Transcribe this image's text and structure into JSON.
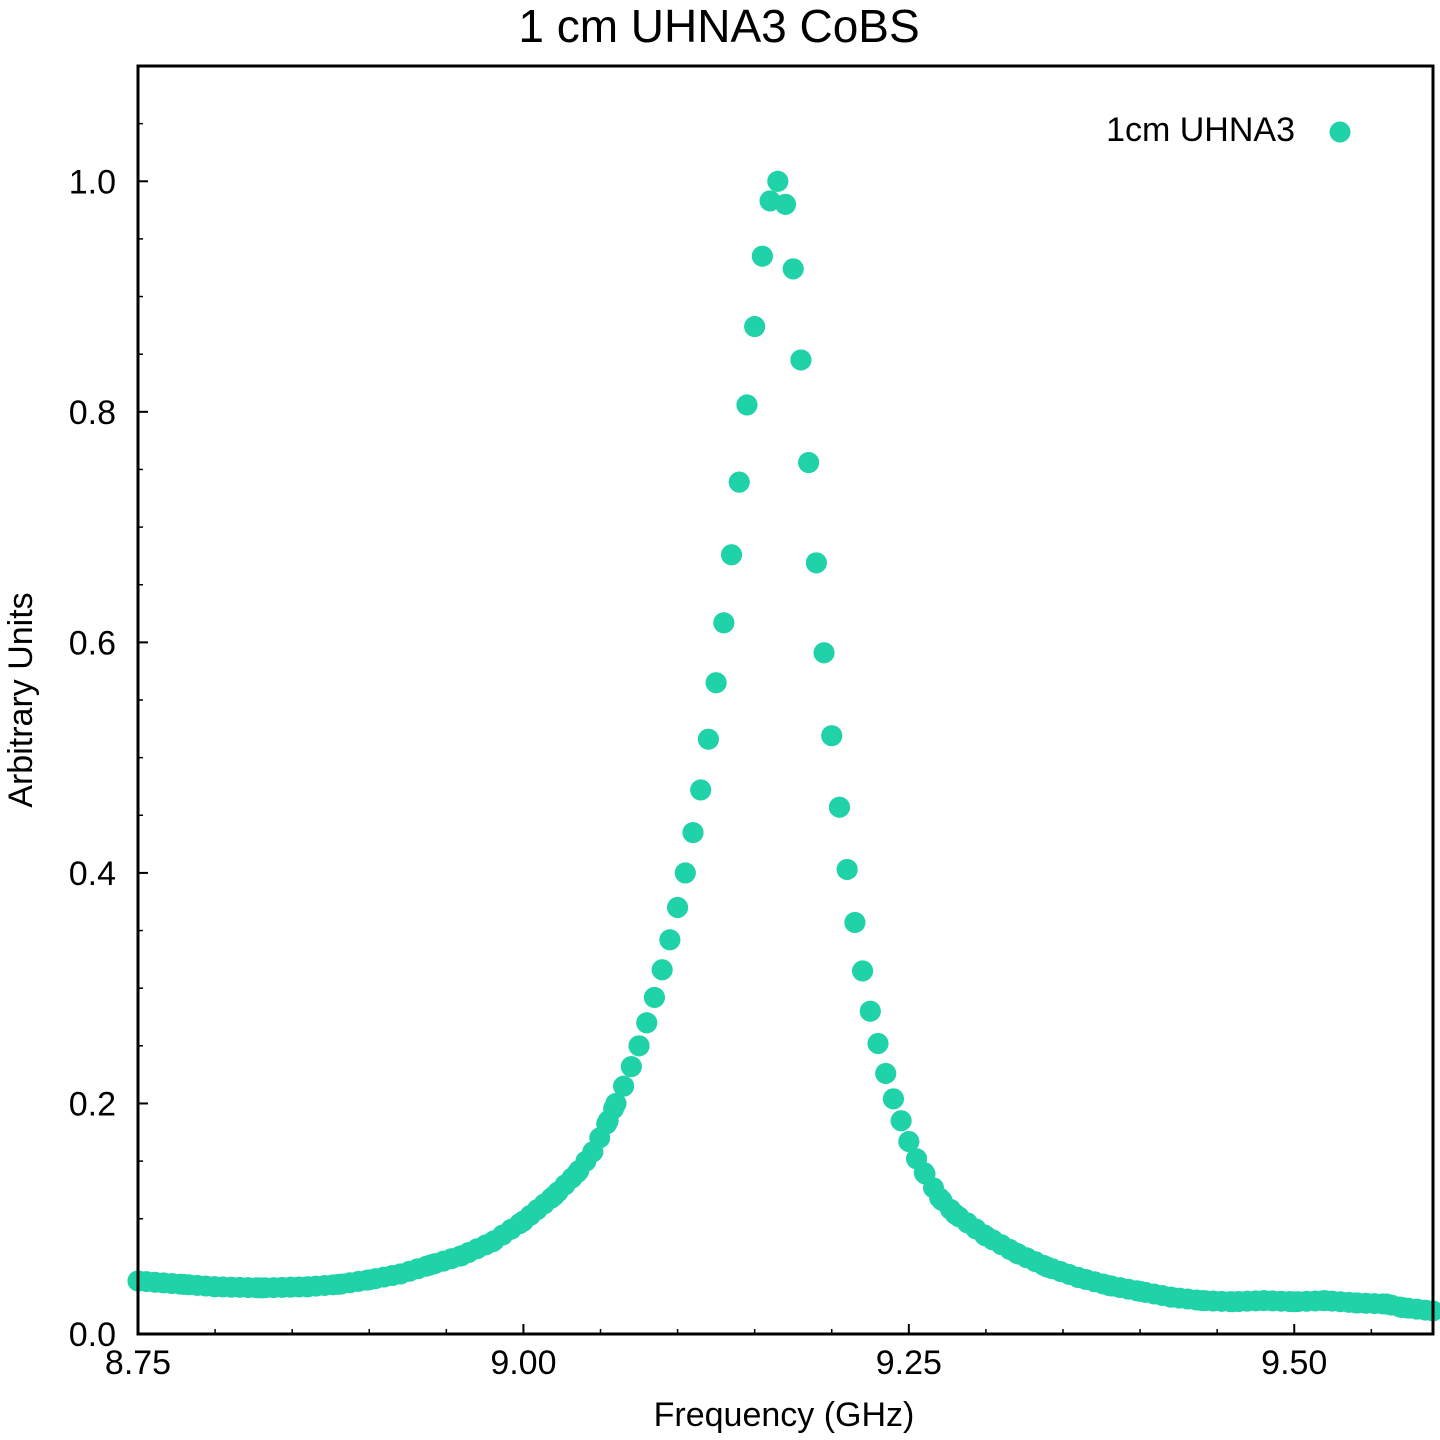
{
  "chart_data": {
    "type": "scatter",
    "title": "1 cm UHNA3 CoBS",
    "xlabel": "Frequency (GHz)",
    "ylabel": "Arbitrary Units",
    "xlim": [
      8.75,
      9.59
    ],
    "ylim": [
      0.0,
      1.1
    ],
    "xticks": [
      8.75,
      9.0,
      9.25,
      9.5
    ],
    "xtick_labels": [
      "8.75",
      "9.00",
      "9.25",
      "9.50"
    ],
    "yticks": [
      0.0,
      0.2,
      0.4,
      0.6,
      0.8,
      1.0
    ],
    "ytick_labels": [
      "0.0",
      "0.2",
      "0.4",
      "0.6",
      "0.8",
      "1.0"
    ],
    "grid": false,
    "legend_position": "top-right",
    "series": [
      {
        "name": "1cm UHNA3",
        "color": "#20d2a8",
        "anchor_points": [
          [
            8.75,
            0.046
          ],
          [
            8.78,
            0.043
          ],
          [
            8.8,
            0.041
          ],
          [
            8.83,
            0.04
          ],
          [
            8.86,
            0.041
          ],
          [
            8.88,
            0.043
          ],
          [
            8.9,
            0.047
          ],
          [
            8.92,
            0.052
          ],
          [
            8.94,
            0.06
          ],
          [
            8.96,
            0.068
          ],
          [
            8.98,
            0.08
          ],
          [
            9.0,
            0.098
          ],
          [
            9.02,
            0.12
          ],
          [
            9.035,
            0.14
          ],
          [
            9.045,
            0.158
          ],
          [
            9.055,
            0.185
          ],
          [
            9.06,
            0.2
          ],
          [
            9.065,
            0.215
          ],
          [
            9.07,
            0.232
          ],
          [
            9.075,
            0.25
          ],
          [
            9.08,
            0.27
          ],
          [
            9.085,
            0.292
          ],
          [
            9.09,
            0.316
          ],
          [
            9.095,
            0.342
          ],
          [
            9.1,
            0.37
          ],
          [
            9.105,
            0.4
          ],
          [
            9.11,
            0.435
          ],
          [
            9.115,
            0.472
          ],
          [
            9.12,
            0.516
          ],
          [
            9.125,
            0.565
          ],
          [
            9.13,
            0.617
          ],
          [
            9.135,
            0.676
          ],
          [
            9.14,
            0.739
          ],
          [
            9.145,
            0.806
          ],
          [
            9.15,
            0.874
          ],
          [
            9.155,
            0.935
          ],
          [
            9.16,
            0.983
          ],
          [
            9.165,
            1.0
          ],
          [
            9.17,
            0.98
          ],
          [
            9.175,
            0.924
          ],
          [
            9.18,
            0.845
          ],
          [
            9.185,
            0.756
          ],
          [
            9.19,
            0.669
          ],
          [
            9.195,
            0.591
          ],
          [
            9.2,
            0.519
          ],
          [
            9.205,
            0.457
          ],
          [
            9.21,
            0.403
          ],
          [
            9.215,
            0.357
          ],
          [
            9.22,
            0.315
          ],
          [
            9.225,
            0.28
          ],
          [
            9.23,
            0.252
          ],
          [
            9.235,
            0.226
          ],
          [
            9.24,
            0.204
          ],
          [
            9.245,
            0.185
          ],
          [
            9.25,
            0.167
          ],
          [
            9.255,
            0.152
          ],
          [
            9.26,
            0.14
          ],
          [
            9.27,
            0.118
          ],
          [
            9.28,
            0.104
          ],
          [
            9.3,
            0.085
          ],
          [
            9.32,
            0.07
          ],
          [
            9.34,
            0.058
          ],
          [
            9.36,
            0.049
          ],
          [
            9.38,
            0.042
          ],
          [
            9.4,
            0.037
          ],
          [
            9.42,
            0.032
          ],
          [
            9.44,
            0.029
          ],
          [
            9.46,
            0.028
          ],
          [
            9.48,
            0.029
          ],
          [
            9.5,
            0.028
          ],
          [
            9.52,
            0.029
          ],
          [
            9.54,
            0.027
          ],
          [
            9.56,
            0.026
          ],
          [
            9.57,
            0.023
          ],
          [
            9.59,
            0.02
          ]
        ]
      }
    ]
  }
}
